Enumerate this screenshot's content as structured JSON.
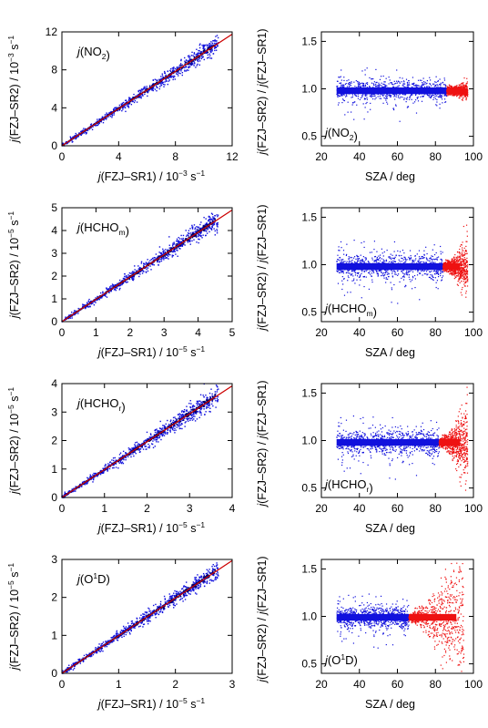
{
  "colors": {
    "scatter_primary": "#1111dd",
    "scatter_secondary": "#ee1111",
    "fit_line": "#cc0000",
    "axis": "#000000"
  },
  "chart_data": [
    {
      "type": "scatter",
      "panel": "scatter-no2",
      "label_species": "NO",
      "label_subscript": "2",
      "ylabel_unit": "10",
      "ylabel_exp": "−3",
      "xlabel_unit": "10",
      "xlabel_exp": "−3",
      "xlim": [
        0,
        12
      ],
      "ylim": [
        0,
        12
      ],
      "xticks": [
        0,
        4,
        8,
        12
      ],
      "yticks": [
        0,
        4,
        8,
        12
      ],
      "fit_slope": 0.98,
      "spread": 0.07,
      "n_points": 700
    },
    {
      "type": "scatter",
      "panel": "ratio-no2",
      "label_species": "NO",
      "label_subscript": "2",
      "xlim": [
        20,
        100
      ],
      "ylim": [
        0.4,
        1.6
      ],
      "xticks": [
        20,
        40,
        60,
        80,
        100
      ],
      "yticks": [
        0.5,
        1.0,
        1.5
      ],
      "ratio_mean": 0.98,
      "red_from_sza": 86,
      "sza_min": 28,
      "sza_max": 97,
      "noise_low_sza": 0.05,
      "noise_high_sza": 0.02
    },
    {
      "type": "scatter",
      "panel": "scatter-hcho-m",
      "label_species": "HCHO",
      "label_subscript": "m",
      "ylabel_unit": "10",
      "ylabel_exp": "−5",
      "xlabel_unit": "10",
      "xlabel_exp": "−5",
      "xlim": [
        0,
        5
      ],
      "ylim": [
        0,
        5
      ],
      "xticks": [
        0,
        1,
        2,
        3,
        4,
        5
      ],
      "yticks": [
        0,
        1,
        2,
        3,
        4,
        5
      ],
      "fit_slope": 0.98,
      "spread": 0.08,
      "n_points": 700
    },
    {
      "type": "scatter",
      "panel": "ratio-hcho-m",
      "label_species": "HCHO",
      "label_subscript": "m",
      "xlim": [
        20,
        100
      ],
      "ylim": [
        0.4,
        1.6
      ],
      "xticks": [
        20,
        40,
        60,
        80,
        100
      ],
      "yticks": [
        0.5,
        1.0,
        1.5
      ],
      "ratio_mean": 0.98,
      "red_from_sza": 84,
      "sza_min": 28,
      "sza_max": 97,
      "noise_low_sza": 0.06,
      "noise_high_sza": 0.12
    },
    {
      "type": "scatter",
      "panel": "scatter-hcho-r",
      "label_species": "HCHO",
      "label_subscript": "r",
      "ylabel_unit": "10",
      "ylabel_exp": "−5",
      "xlabel_unit": "10",
      "xlabel_exp": "−5",
      "xlim": [
        0,
        4
      ],
      "ylim": [
        0,
        4
      ],
      "xticks": [
        0,
        1,
        2,
        3,
        4
      ],
      "yticks": [
        0,
        1,
        2,
        3,
        4
      ],
      "fit_slope": 0.98,
      "spread": 0.09,
      "n_points": 700
    },
    {
      "type": "scatter",
      "panel": "ratio-hcho-r",
      "label_species": "HCHO",
      "label_subscript": "r",
      "xlim": [
        20,
        100
      ],
      "ylim": [
        0.4,
        1.6
      ],
      "xticks": [
        20,
        40,
        60,
        80,
        100
      ],
      "yticks": [
        0.5,
        1.0,
        1.5
      ],
      "ratio_mean": 0.98,
      "red_from_sza": 82,
      "sza_min": 28,
      "sza_max": 97,
      "noise_low_sza": 0.06,
      "noise_high_sza": 0.2
    },
    {
      "type": "scatter",
      "panel": "scatter-o1d",
      "label_species": "O",
      "label_sup": "1",
      "label_tail": "D",
      "ylabel_unit": "10",
      "ylabel_exp": "−5",
      "xlabel_unit": "10",
      "xlabel_exp": "−5",
      "xlim": [
        0,
        3
      ],
      "ylim": [
        0,
        3
      ],
      "xticks": [
        0,
        1,
        2,
        3
      ],
      "yticks": [
        0,
        1,
        2,
        3
      ],
      "fit_slope": 0.99,
      "spread": 0.08,
      "n_points": 700
    },
    {
      "type": "scatter",
      "panel": "ratio-o1d",
      "label_species": "O",
      "label_sup": "1",
      "label_tail": "D",
      "xlim": [
        20,
        100
      ],
      "ylim": [
        0.4,
        1.6
      ],
      "xticks": [
        20,
        40,
        60,
        80,
        100
      ],
      "yticks": [
        0.5,
        1.0,
        1.5
      ],
      "ratio_mean": 0.99,
      "red_from_sza": 66,
      "sza_min": 28,
      "sza_max": 95,
      "noise_low_sza": 0.05,
      "noise_high_sza": 0.4
    }
  ],
  "labels": {
    "j": "j",
    "x_sr1": "(FZJ–SR1) / ",
    "y_sr2": "(FZJ–SR2) / ",
    "unit_tail": " s",
    "unit_exp": "−1",
    "ratio_num": "(FZJ–SR2) / ",
    "ratio_den": "(FZJ–SR1)",
    "sza": "SZA / deg"
  }
}
